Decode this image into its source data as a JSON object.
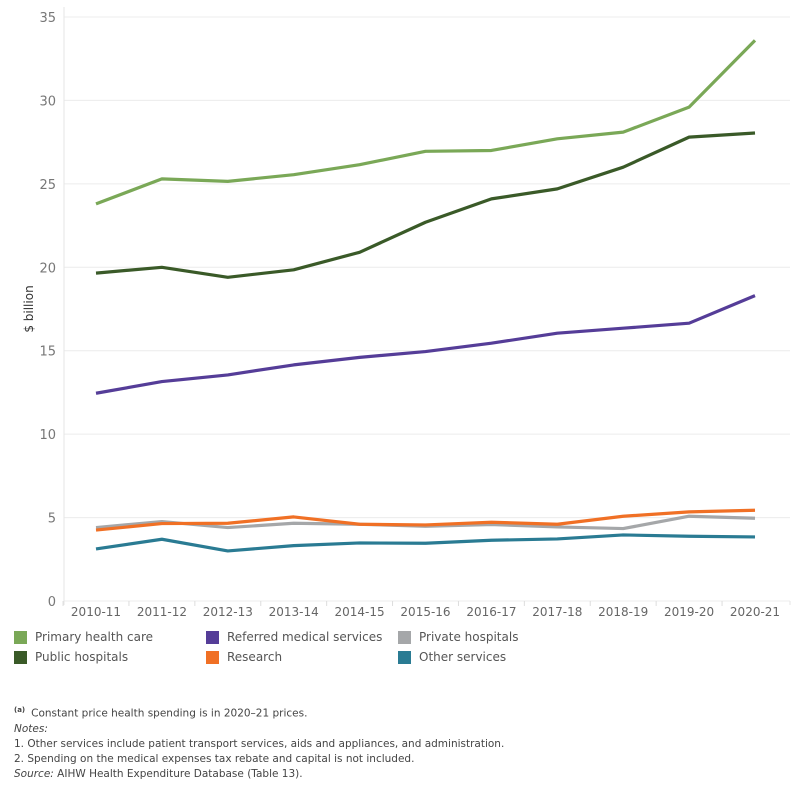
{
  "chart_data": {
    "type": "line",
    "ylabel": "$ billion",
    "xlabel": "",
    "ylim": [
      0,
      35
    ],
    "yticks": [
      0,
      5,
      10,
      15,
      20,
      25,
      30,
      35
    ],
    "grid": true,
    "legend_position": "bottom",
    "categories": [
      "2010-11",
      "2011-12",
      "2012-13",
      "2013-14",
      "2014-15",
      "2015-16",
      "2016-17",
      "2017-18",
      "2018-19",
      "2019-20",
      "2020-21"
    ],
    "series": [
      {
        "name": "Primary health care",
        "color": "#7aa857",
        "values": [
          23.8,
          25.3,
          25.15,
          25.55,
          26.15,
          26.95,
          27.0,
          27.7,
          28.1,
          29.6,
          33.6
        ]
      },
      {
        "name": "Public hospitals",
        "color": "#3a5a28",
        "values": [
          19.65,
          20.0,
          19.4,
          19.85,
          20.9,
          22.7,
          24.1,
          24.7,
          26.0,
          27.8,
          28.05
        ]
      },
      {
        "name": "Referred medical services",
        "color": "#553d98",
        "values": [
          12.45,
          13.15,
          13.55,
          14.15,
          14.6,
          14.95,
          15.45,
          16.05,
          16.35,
          16.65,
          18.3
        ]
      },
      {
        "name": "Research",
        "color": "#f07025",
        "values": [
          4.25,
          4.64,
          4.66,
          5.04,
          4.6,
          4.56,
          4.72,
          4.6,
          5.08,
          5.34,
          5.44
        ]
      },
      {
        "name": "Private hospitals",
        "color": "#a5a7a9",
        "values": [
          4.4,
          4.76,
          4.4,
          4.66,
          4.6,
          4.48,
          4.58,
          4.44,
          4.34,
          5.08,
          4.96
        ]
      },
      {
        "name": "Other services",
        "color": "#2a7b93",
        "values": [
          3.12,
          3.7,
          3.0,
          3.32,
          3.48,
          3.46,
          3.64,
          3.72,
          3.96,
          3.88,
          3.84
        ]
      }
    ]
  },
  "legend_order": [
    0,
    2,
    4,
    1,
    3,
    5
  ],
  "notes": {
    "footnote_marker": "(a)",
    "footnote": "Constant price health spending is in 2020–21 prices.",
    "notes_label": "Notes:",
    "note1": "1. Other services include patient transport services, aids and appliances, and administration.",
    "note2": "2. Spending on the medical expenses tax rebate and capital is not included.",
    "source_label": "Source:",
    "source": " AIHW Health Expenditure Database (Table 13)."
  }
}
